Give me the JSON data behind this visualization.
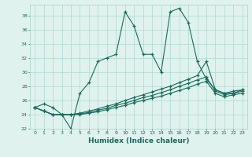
{
  "xlabel": "Humidex (Indice chaleur)",
  "line_color": "#1a6b5a",
  "bg_color": "#dff2ee",
  "grid_color": "#b0d8d0",
  "xlim": [
    -0.5,
    23.5
  ],
  "ylim": [
    22,
    39.5
  ],
  "yticks": [
    22,
    24,
    26,
    28,
    30,
    32,
    34,
    36,
    38
  ],
  "xticks": [
    0,
    1,
    2,
    3,
    4,
    5,
    6,
    7,
    8,
    9,
    10,
    11,
    12,
    13,
    14,
    15,
    16,
    17,
    18,
    19,
    20,
    21,
    22,
    23
  ],
  "series1": [
    25.0,
    25.5,
    25.0,
    24.0,
    22.0,
    27.0,
    28.5,
    31.5,
    32.0,
    32.5,
    38.5,
    36.5,
    32.5,
    32.5,
    30.0,
    38.5,
    39.0,
    37.0,
    31.5,
    29.0,
    27.5,
    27.0,
    27.0,
    27.5
  ],
  "series2": [
    25.0,
    24.5,
    24.0,
    24.0,
    24.0,
    24.2,
    24.5,
    24.8,
    25.2,
    25.5,
    26.0,
    26.4,
    26.8,
    27.2,
    27.6,
    28.0,
    28.5,
    29.0,
    29.5,
    31.5,
    27.5,
    27.0,
    27.3,
    27.5
  ],
  "series3": [
    25.0,
    24.5,
    24.0,
    24.0,
    24.0,
    24.1,
    24.3,
    24.6,
    24.9,
    25.3,
    25.6,
    26.0,
    26.4,
    26.7,
    27.1,
    27.5,
    28.0,
    28.4,
    28.9,
    29.3,
    27.3,
    26.8,
    27.0,
    27.3
  ],
  "series4": [
    25.0,
    24.5,
    24.0,
    24.0,
    24.0,
    24.0,
    24.2,
    24.4,
    24.7,
    25.0,
    25.3,
    25.7,
    26.0,
    26.3,
    26.6,
    27.0,
    27.4,
    27.8,
    28.3,
    28.7,
    27.0,
    26.5,
    26.8,
    27.0
  ]
}
